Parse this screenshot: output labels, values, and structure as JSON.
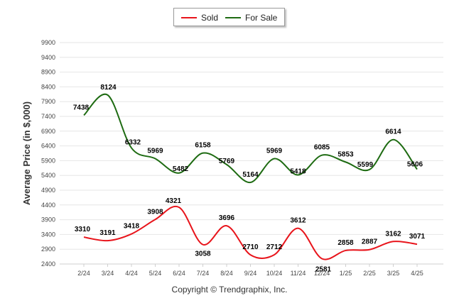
{
  "chart_data": {
    "type": "line",
    "title": "",
    "ylabel": "Average Price (in $,000)",
    "xlabel": "",
    "categories": [
      "2/24",
      "3/24",
      "4/24",
      "5/24",
      "6/24",
      "7/24",
      "8/24",
      "9/24",
      "10/24",
      "11/24",
      "12/24",
      "1/25",
      "2/25",
      "3/25",
      "4/25"
    ],
    "ylim": [
      2400,
      9900
    ],
    "yticks": [
      2400,
      2900,
      3400,
      3900,
      4400,
      4900,
      5400,
      5900,
      6400,
      6900,
      7400,
      7900,
      8400,
      8900,
      9400,
      9900
    ],
    "grid": true,
    "legend_position": "top-center",
    "series": [
      {
        "name": "Sold",
        "color": "#e8141b",
        "values": [
          3310,
          3191,
          3418,
          3908,
          4321,
          3058,
          3696,
          2710,
          2712,
          3612,
          2581,
          2858,
          2887,
          3162,
          3071
        ]
      },
      {
        "name": "For Sale",
        "color": "#1e6b12",
        "values": [
          7438,
          8124,
          6332,
          5969,
          5482,
          6158,
          5769,
          5164,
          5969,
          5418,
          6085,
          5853,
          5599,
          6614,
          5606
        ]
      }
    ],
    "footer": "Copyright © Trendgraphix, Inc."
  }
}
